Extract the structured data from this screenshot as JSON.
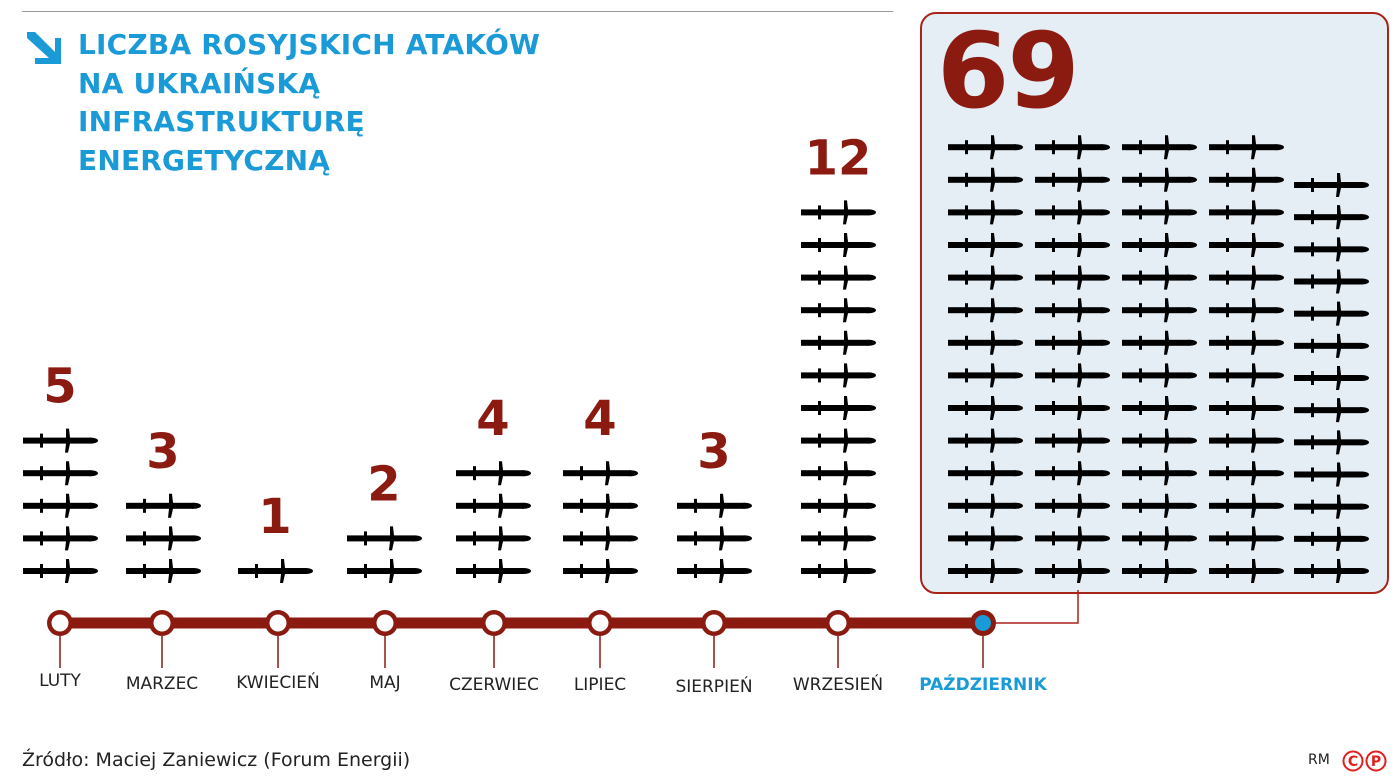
{
  "chart_data": {
    "type": "bar",
    "title": "LICZBA ROSYJSKICH ATAKÓW NA UKRAIŃSKĄ INFRASTRUKTURĘ ENERGETYCZNĄ",
    "title_lines": [
      "LICZBA ROSYJSKICH ATAKÓW",
      "NA UKRAIŃSKĄ",
      "INFRASTRUKTURĘ",
      "ENERGETYCZNĄ"
    ],
    "categories": [
      "LUTY",
      "MARZEC",
      "KWIECIEŃ",
      "MAJ",
      "CZERWIEC",
      "LIPIEC",
      "SIERPIEŃ",
      "WRZESIEŃ",
      "PAŹDZIERNIK"
    ],
    "values": [
      5,
      3,
      1,
      2,
      4,
      4,
      3,
      12,
      69
    ],
    "value_labels": [
      "5",
      "3",
      "1",
      "2",
      "4",
      "4",
      "3",
      "12",
      "69"
    ],
    "highlight": "PAŹDZIERNIK",
    "unit_icon": "missile-icon",
    "xlabel": "",
    "ylabel": ""
  },
  "source": "Źródło: Maciej Zaniewicz (Forum Energii)",
  "credit": "RM",
  "logo_text": "CP",
  "colors": {
    "title": "#1a9ad6",
    "accent": "#8b1a10",
    "line": "#8b1a10",
    "highlight": "#1a9ad6",
    "box": "#e5edf5"
  }
}
